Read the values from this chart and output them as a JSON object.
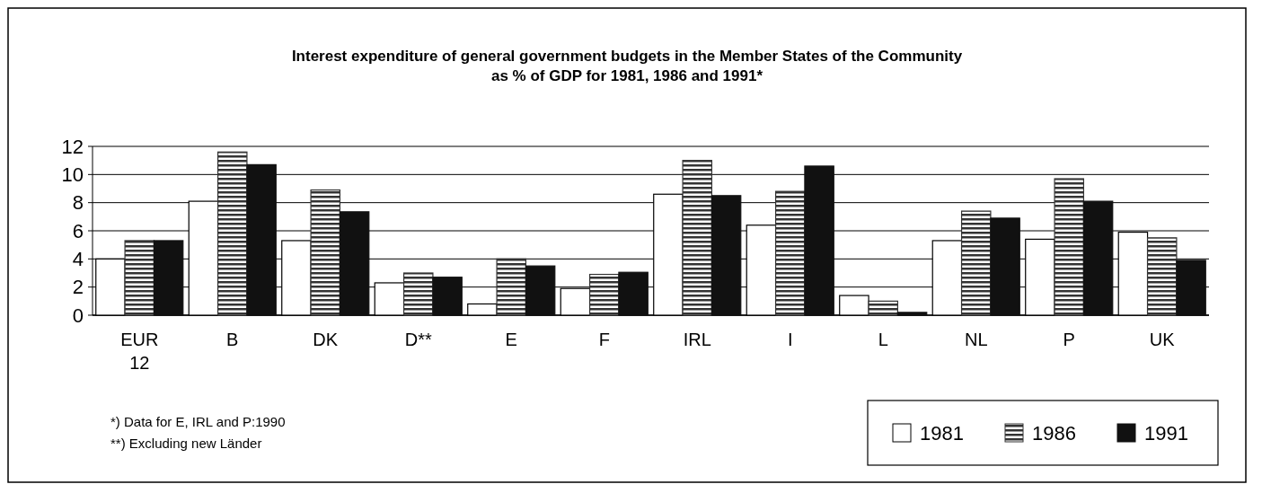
{
  "chart_data": {
    "type": "bar",
    "title": "Interest expenditure of general government budgets in the Member States of the Community as % of GDP for 1981, 1986 and 1991*",
    "categories": [
      "EUR 12",
      "B",
      "DK",
      "D**",
      "E",
      "F",
      "IRL",
      "I",
      "L",
      "NL",
      "P",
      "UK"
    ],
    "series": [
      {
        "name": "1981",
        "color": "#ffffff",
        "values": [
          4.0,
          8.1,
          5.3,
          2.3,
          0.8,
          1.9,
          8.6,
          6.4,
          1.4,
          5.3,
          5.4,
          5.9
        ]
      },
      {
        "name": "1986",
        "color": "#333333",
        "values": [
          5.3,
          11.6,
          8.9,
          3.0,
          4.0,
          2.9,
          11.0,
          8.8,
          1.0,
          7.4,
          9.7,
          5.5
        ]
      },
      {
        "name": "1991",
        "color": "#111111",
        "values": [
          5.3,
          10.7,
          7.35,
          2.7,
          3.5,
          3.05,
          8.5,
          10.6,
          0.2,
          6.9,
          8.1,
          3.9
        ]
      }
    ],
    "ylim": [
      0,
      12
    ],
    "yticks": [
      0,
      2,
      4,
      6,
      8,
      10,
      12
    ],
    "grid": "y",
    "legend": "bottom right",
    "annotations": [
      "*)  Data for E, IRL and P:1990",
      "**) Excluding new Länder"
    ]
  }
}
